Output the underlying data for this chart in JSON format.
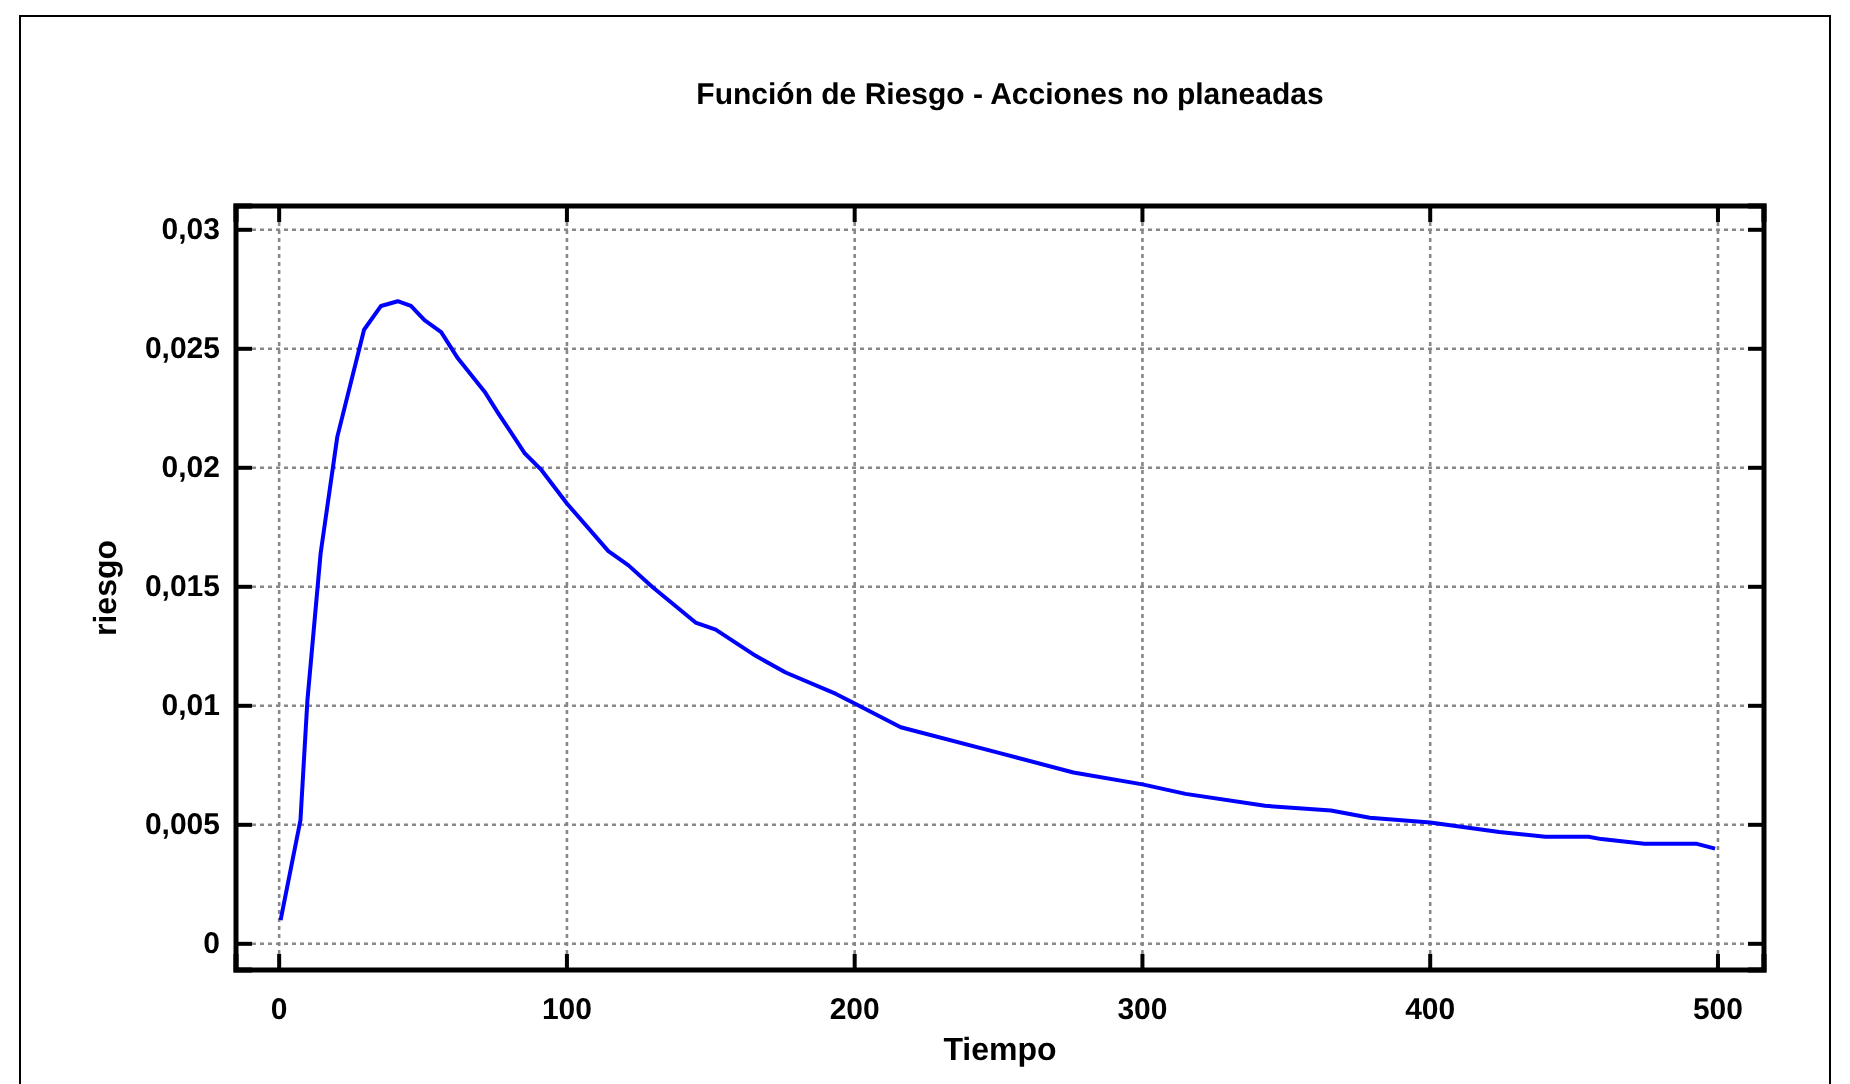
{
  "chart_data": {
    "type": "line",
    "title": "Función de Riesgo - Acciones no planeadas",
    "xlabel": "Tiempo",
    "ylabel": "riesgo",
    "x": [
      0.5,
      7.4,
      9.8,
      14.4,
      20.2,
      29.5,
      35.4,
      41.2,
      45.8,
      50.5,
      56.3,
      62.1,
      71.4,
      76.1,
      85.4,
      91.2,
      100,
      114.4,
      121.4,
      129.6,
      144.7,
      151.7,
      165.6,
      176,
      193.5,
      200,
      216,
      250.8,
      276,
      300,
      315,
      342.6,
      365.5,
      379,
      400,
      424,
      440,
      455,
      459.5,
      474.4,
      492.7,
      499
    ],
    "series": [
      {
        "color": "#0000ff",
        "values": [
          0.001,
          0.0052,
          0.0102,
          0.0164,
          0.0213,
          0.0258,
          0.0268,
          0.027,
          0.0268,
          0.0262,
          0.0257,
          0.0246,
          0.0232,
          0.0223,
          0.0206,
          0.0199,
          0.0185,
          0.0165,
          0.0159,
          0.015,
          0.0135,
          0.0132,
          0.0121,
          0.0114,
          0.0105,
          0.0101,
          0.0091,
          0.008,
          0.0072,
          0.0067,
          0.0063,
          0.0058,
          0.0056,
          0.0053,
          0.0051,
          0.0047,
          0.0045,
          0.0045,
          0.0044,
          0.0042,
          0.0042,
          0.004
        ]
      }
    ],
    "xlim": [
      -15,
      516
    ],
    "ylim": [
      -0.0011,
      0.031
    ],
    "xticks": [
      0,
      100,
      200,
      300,
      400,
      500
    ],
    "yticks": [
      {
        "value": 0,
        "label": "0"
      },
      {
        "value": 0.005,
        "label": "0,005"
      },
      {
        "value": 0.01,
        "label": "0,01"
      },
      {
        "value": 0.015,
        "label": "0,015"
      },
      {
        "value": 0.02,
        "label": "0,02"
      },
      {
        "value": 0.025,
        "label": "0,025"
      },
      {
        "value": 0.03,
        "label": "0,03"
      }
    ],
    "grid": true,
    "line_style": "solid",
    "marker": "none"
  }
}
